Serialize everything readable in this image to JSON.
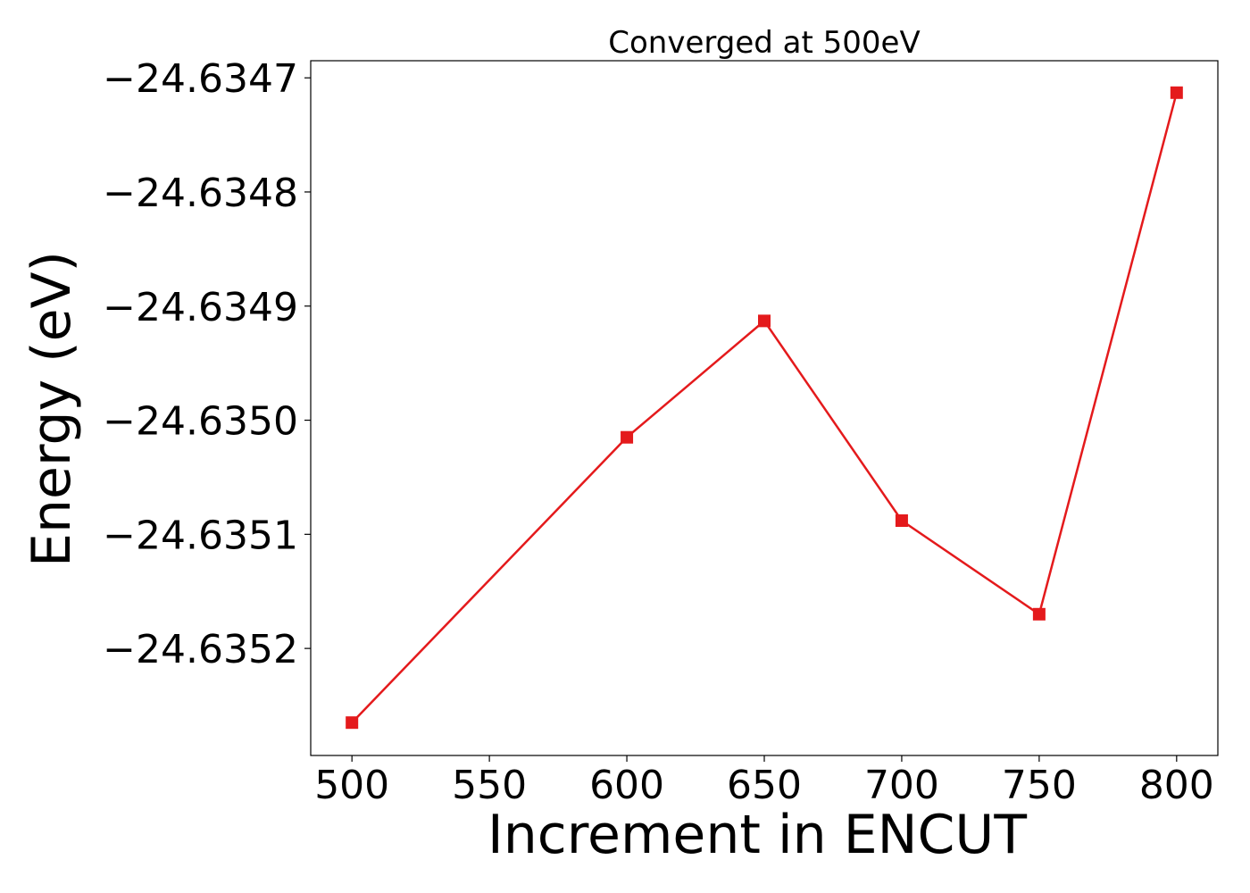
{
  "chart_data": {
    "type": "line",
    "title": "Converged at 500eV",
    "xlabel": "Increment in ENCUT",
    "ylabel": "Energy (eV)",
    "x": [
      500,
      600,
      650,
      700,
      750,
      800
    ],
    "series": [
      {
        "values": [
          -24.635265,
          -24.635015,
          -24.634913,
          -24.635088,
          -24.63517,
          -24.634713
        ],
        "color": "#e41a1c",
        "marker": "square"
      }
    ],
    "xlim": [
      485,
      815
    ],
    "ylim": [
      -24.6352938,
      -24.634685
    ],
    "x_ticks": [
      500,
      550,
      600,
      650,
      700,
      750,
      800
    ],
    "x_tick_labels": [
      "500",
      "550",
      "600",
      "650",
      "700",
      "750",
      "800"
    ],
    "y_ticks": [
      -24.6347,
      -24.6348,
      -24.6349,
      -24.635,
      -24.6351,
      -24.6352
    ],
    "y_tick_labels": [
      "−24.6347",
      "−24.6348",
      "−24.6349",
      "−24.6350",
      "−24.6351",
      "−24.6352"
    ],
    "grid": false,
    "legend": "none"
  }
}
